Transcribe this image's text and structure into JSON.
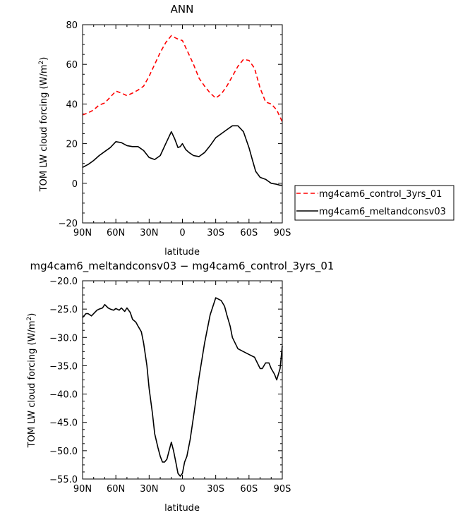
{
  "chart_data": [
    {
      "type": "line",
      "title": "ANN",
      "xlabel": "latitude",
      "ylabel": "TOM LW cloud forcing (W/m²)",
      "ylabel_main": "TOM LW cloud forcing (W/m",
      "ylabel_sup": "2",
      "ylabel_end": ")",
      "xlim": [
        90,
        -90
      ],
      "ylim": [
        -20,
        80
      ],
      "xticks": [
        90,
        60,
        30,
        0,
        -30,
        -60,
        -90
      ],
      "xtick_labels": [
        "90N",
        "60N",
        "30N",
        "0",
        "30S",
        "60S",
        "90S"
      ],
      "yticks": [
        -20,
        0,
        20,
        40,
        60,
        80
      ],
      "ytick_labels": [
        "−20",
        "0",
        "20",
        "40",
        "60",
        "80"
      ],
      "legend": "right",
      "series": [
        {
          "name": "mg4cam6_control_3yrs_01",
          "color": "#ff0000",
          "dash": "dashed",
          "x": [
            90,
            85,
            80,
            75,
            70,
            65,
            60,
            55,
            50,
            45,
            40,
            35,
            30,
            25,
            20,
            15,
            10,
            5,
            0,
            -5,
            -10,
            -15,
            -20,
            -25,
            -30,
            -35,
            -40,
            -45,
            -50,
            -55,
            -60,
            -65,
            -70,
            -75,
            -80,
            -85,
            -90
          ],
          "y": [
            34.5,
            35.5,
            37,
            39.5,
            40.5,
            43.5,
            46.5,
            45.5,
            44.2,
            45.5,
            47,
            49,
            54,
            60,
            66,
            71,
            74.5,
            73,
            72,
            66,
            60,
            53,
            49,
            45.5,
            43,
            45,
            49,
            54,
            59,
            62.5,
            62,
            58,
            48,
            41,
            40,
            37,
            31
          ]
        },
        {
          "name": "mg4cam6_meltandconsv03",
          "color": "#000000",
          "dash": "solid",
          "x": [
            90,
            85,
            80,
            75,
            70,
            65,
            60,
            55,
            50,
            45,
            40,
            35,
            30,
            25,
            20,
            15,
            10,
            7,
            4,
            2,
            0,
            -3,
            -6,
            -10,
            -15,
            -20,
            -25,
            -30,
            -35,
            -40,
            -45,
            -50,
            -55,
            -60,
            -63,
            -66,
            -70,
            -75,
            -80,
            -85,
            -88,
            -90
          ],
          "y": [
            8,
            9.5,
            11.5,
            14,
            16,
            18,
            21,
            20.5,
            19,
            18.5,
            18.5,
            16.5,
            13,
            12,
            14,
            20,
            26,
            22.5,
            18,
            18.5,
            20,
            17,
            15.5,
            14,
            13.5,
            15.5,
            19,
            23,
            25,
            27,
            29,
            29,
            26,
            18,
            12,
            6,
            3,
            2,
            0,
            -0.5,
            -1,
            -1
          ]
        }
      ]
    },
    {
      "type": "line",
      "title": "mg4cam6_meltandconsv03 − mg4cam6_control_3yrs_01",
      "xlabel": "latitude",
      "ylabel": "TOM LW cloud forcing (W/m²)",
      "ylabel_main": "TOM LW cloud forcing (W/m",
      "ylabel_sup": "2",
      "ylabel_end": ")",
      "xlim": [
        90,
        -90
      ],
      "ylim": [
        -55,
        -20
      ],
      "xticks": [
        90,
        60,
        30,
        0,
        -30,
        -60,
        -90
      ],
      "xtick_labels": [
        "90N",
        "60N",
        "30N",
        "0",
        "30S",
        "60S",
        "90S"
      ],
      "yticks": [
        -55,
        -50,
        -45,
        -40,
        -35,
        -30,
        -25,
        -20
      ],
      "ytick_labels": [
        "−55.0",
        "−50.0",
        "−45.0",
        "−40.0",
        "−35.0",
        "−30.0",
        "−25.0",
        "−20.0"
      ],
      "series": [
        {
          "color": "#000000",
          "dash": "solid",
          "x": [
            90,
            87,
            85,
            82,
            80,
            77,
            75,
            72,
            70,
            67,
            65,
            62,
            60,
            57,
            55,
            52,
            50,
            47,
            45,
            42,
            40,
            37,
            35,
            32,
            30,
            27,
            25,
            22,
            20,
            18,
            16,
            14,
            12,
            10,
            8,
            6,
            4,
            2,
            0,
            -2,
            -4,
            -7,
            -10,
            -15,
            -20,
            -25,
            -30,
            -35,
            -38,
            -40,
            -43,
            -45,
            -50,
            -55,
            -60,
            -65,
            -70,
            -72,
            -75,
            -78,
            -80,
            -83,
            -85,
            -88,
            -90
          ],
          "y": [
            -26.5,
            -25.8,
            -25.8,
            -26.2,
            -25.8,
            -25.2,
            -25,
            -24.8,
            -24.2,
            -24.8,
            -25,
            -25.2,
            -24.9,
            -25.2,
            -24.8,
            -25.4,
            -24.8,
            -25.6,
            -26.8,
            -27.3,
            -28,
            -29,
            -31,
            -35,
            -39,
            -43.5,
            -47,
            -49.5,
            -51,
            -52,
            -52,
            -51.5,
            -50,
            -48.5,
            -50,
            -52,
            -54,
            -54.5,
            -54,
            -52,
            -51,
            -48,
            -44,
            -37,
            -31,
            -26,
            -23,
            -23.5,
            -24.5,
            -26,
            -28,
            -30,
            -32,
            -32.5,
            -33,
            -33.5,
            -35.5,
            -35.5,
            -34.5,
            -34.5,
            -35.5,
            -36.5,
            -37.5,
            -35.5,
            -31.5
          ]
        }
      ]
    }
  ]
}
